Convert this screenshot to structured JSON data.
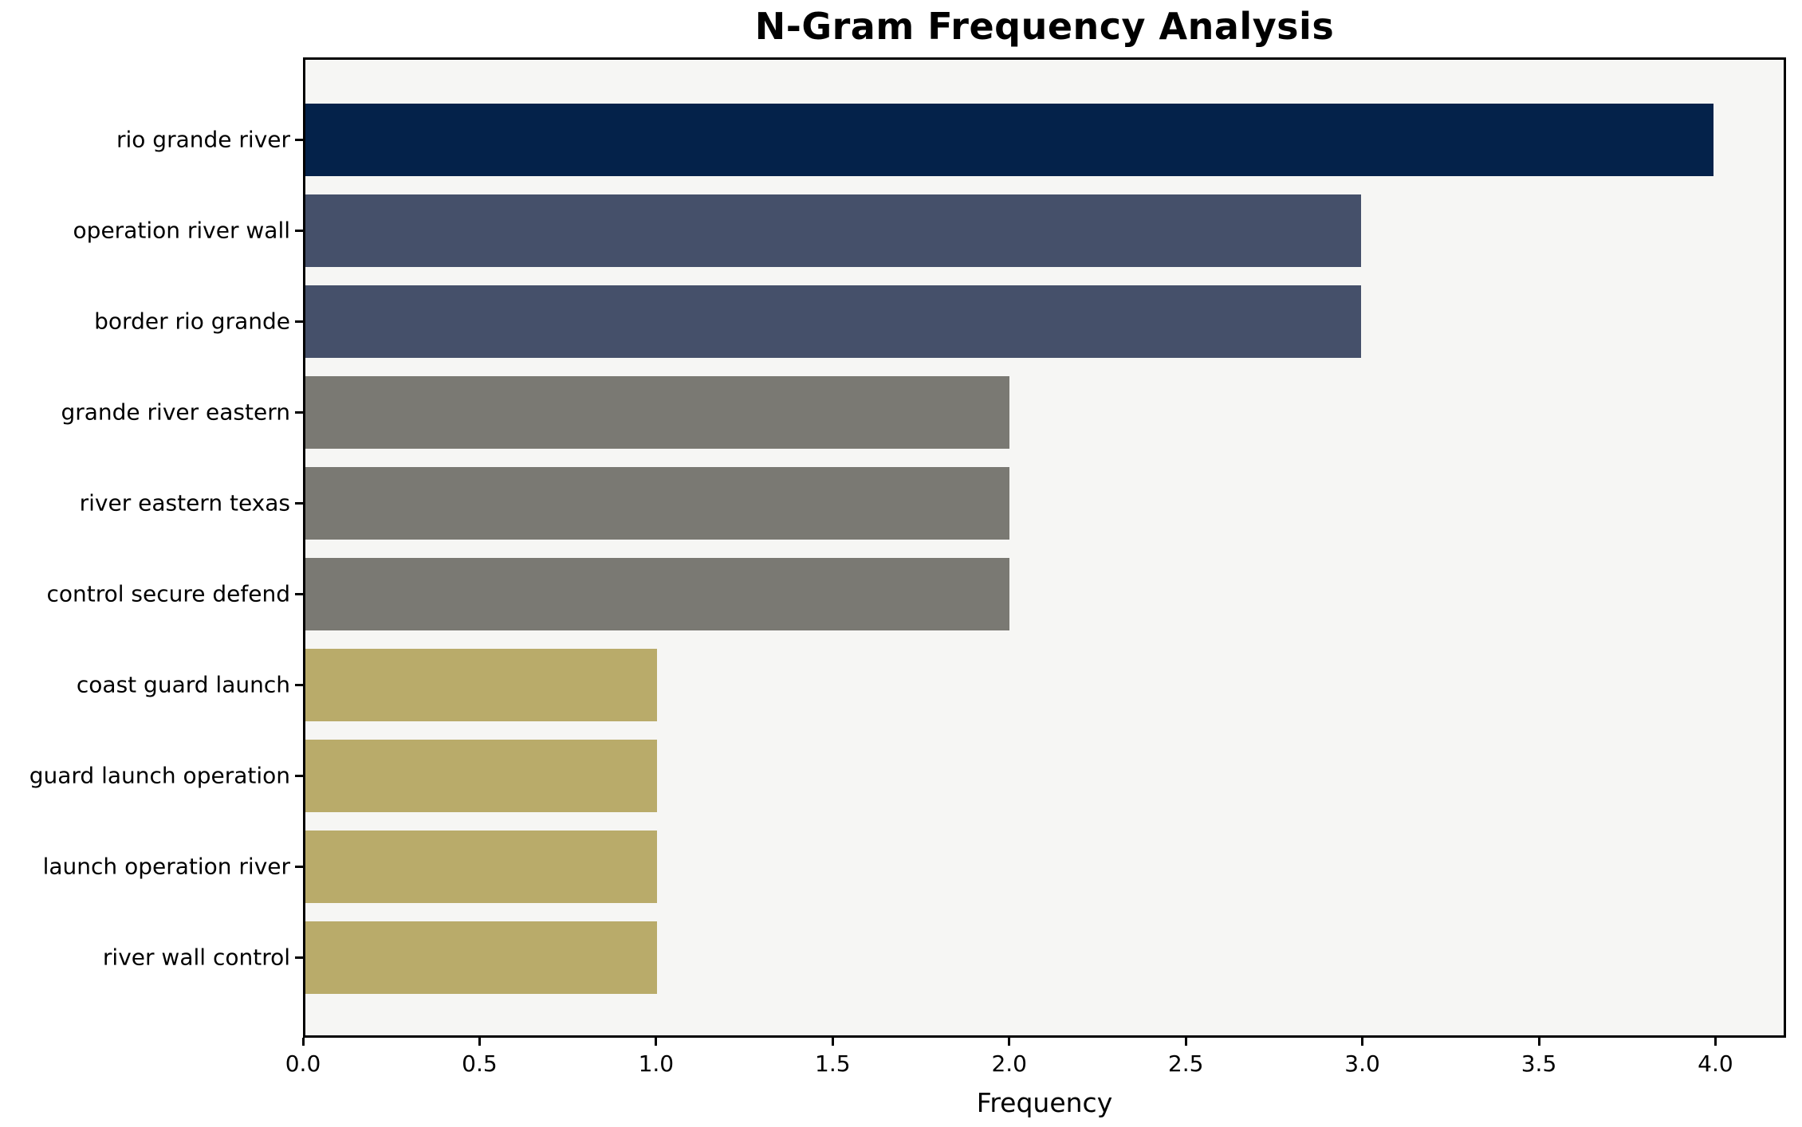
{
  "chart_data": {
    "type": "bar",
    "orientation": "horizontal",
    "title": "N-Gram Frequency Analysis",
    "xlabel": "Frequency",
    "ylabel": "",
    "categories": [
      "rio grande river",
      "operation river wall",
      "border rio grande",
      "grande river eastern",
      "river eastern texas",
      "control secure defend",
      "coast guard launch",
      "guard launch operation",
      "launch operation river",
      "river wall control"
    ],
    "values": [
      4,
      3,
      3,
      2,
      2,
      2,
      1,
      1,
      1,
      1
    ],
    "bar_colors": [
      "#04224a",
      "#45506a",
      "#45506a",
      "#7a7973",
      "#7a7973",
      "#7a7973",
      "#b9ab6a",
      "#b9ab6a",
      "#b9ab6a",
      "#b9ab6a"
    ],
    "xlim": [
      0,
      4.2
    ],
    "xticks": [
      0.0,
      0.5,
      1.0,
      1.5,
      2.0,
      2.5,
      3.0,
      3.5,
      4.0
    ],
    "xtick_labels": [
      "0.0",
      "0.5",
      "1.0",
      "1.5",
      "2.0",
      "2.5",
      "3.0",
      "3.5",
      "4.0"
    ],
    "grid": false,
    "legend": "none",
    "plot_background": "#f6f6f4",
    "figure_background": "#ffffff",
    "axis_color": "#000000"
  }
}
